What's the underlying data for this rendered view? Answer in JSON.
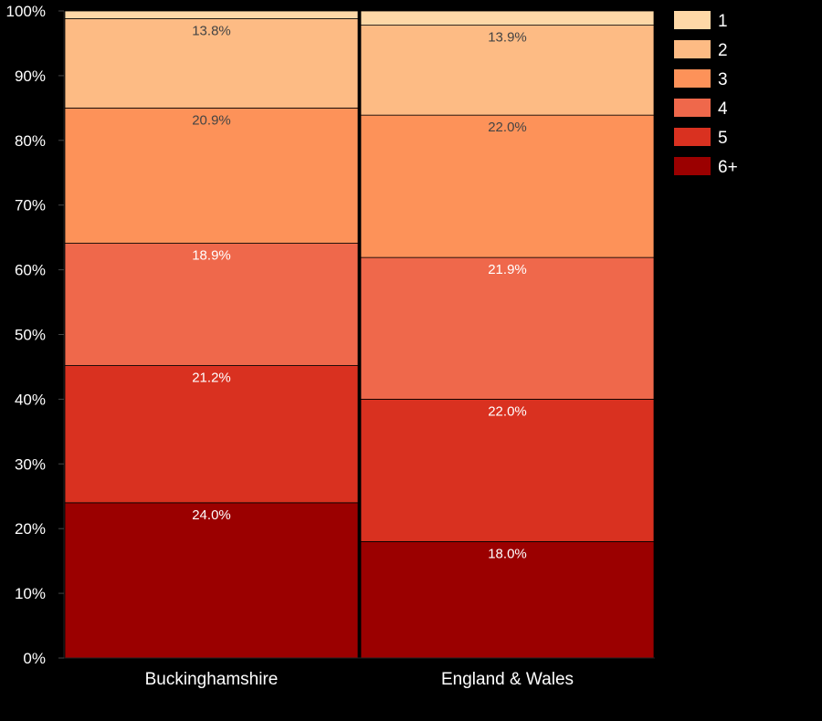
{
  "chart_data": {
    "type": "bar",
    "stacked": true,
    "categories": [
      "Buckinghamshire",
      "England & Wales"
    ],
    "ylim": [
      0,
      100
    ],
    "yticks": [
      "0%",
      "10%",
      "20%",
      "30%",
      "40%",
      "50%",
      "60%",
      "70%",
      "80%",
      "90%",
      "100%"
    ],
    "legend_position": "right",
    "series": [
      {
        "name": "6+",
        "color": "#9b0000",
        "label_color": "#ffffff",
        "values": [
          24.0,
          18.0
        ],
        "labels": [
          "24.0%",
          "18.0%"
        ]
      },
      {
        "name": "5",
        "color": "#d93120",
        "label_color": "#ffffff",
        "values": [
          21.2,
          22.0
        ],
        "labels": [
          "21.2%",
          "22.0%"
        ]
      },
      {
        "name": "4",
        "color": "#ef684b",
        "label_color": "#ffffff",
        "values": [
          18.9,
          21.9
        ],
        "labels": [
          "18.9%",
          "21.9%"
        ]
      },
      {
        "name": "3",
        "color": "#fd9259",
        "label_color": "#444444",
        "values": [
          20.9,
          22.0
        ],
        "labels": [
          "20.9%",
          "22.0%"
        ]
      },
      {
        "name": "2",
        "color": "#fdbb84",
        "label_color": "#444444",
        "values": [
          13.8,
          13.9
        ],
        "labels": [
          "13.8%",
          "13.9%"
        ]
      },
      {
        "name": "1",
        "color": "#fed8a7",
        "label_color": "#444444",
        "values": [
          1.2,
          2.2
        ],
        "labels": [
          "",
          ""
        ]
      }
    ],
    "legend_order": [
      "1",
      "2",
      "3",
      "4",
      "5",
      "6+"
    ]
  }
}
